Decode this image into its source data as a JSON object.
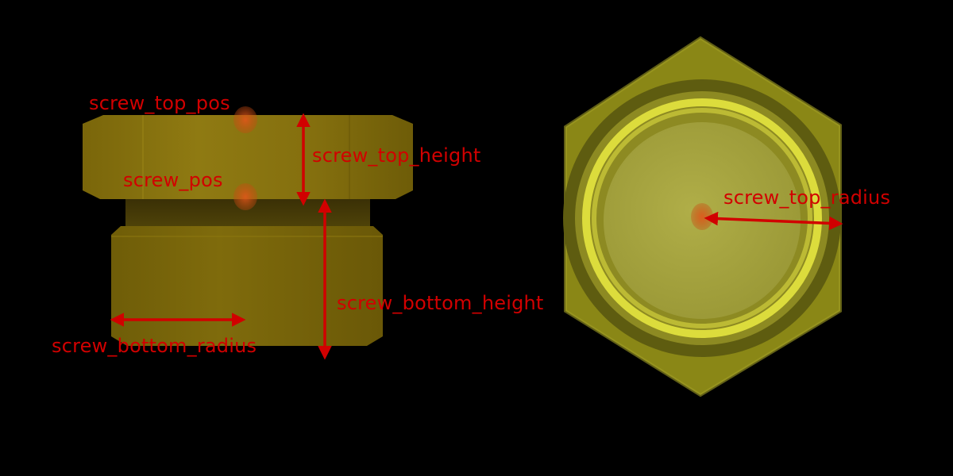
{
  "labels": {
    "screw_top_pos": "screw_top_pos",
    "screw_pos": "screw_pos",
    "screw_top_height": "screw_top_height",
    "screw_bottom_height": "screw_bottom_height",
    "screw_bottom_radius": "screw_bottom_radius",
    "screw_top_radius": "screw_top_radius"
  },
  "colors": {
    "background": "#000000",
    "annotation": "#d10000",
    "marker": "#e0561a",
    "side_body": "#8f7a10",
    "side_body_dark": "#6b5a08",
    "top_hex": "#8d8a16",
    "top_ring": "#5e5c10",
    "top_rim": "#d8d83a",
    "top_face": "#a6a43e"
  },
  "views": {
    "side": "side-view",
    "top": "top-view"
  }
}
